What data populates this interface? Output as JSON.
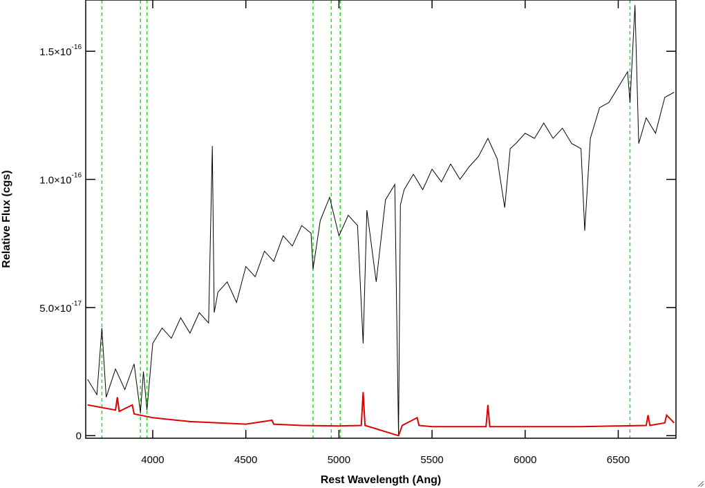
{
  "chart_data": {
    "type": "line",
    "x_label": "Rest Wavelength (Ang)",
    "y_label": "Relative Flux (cgs)",
    "xlim": [
      3640,
      6810
    ],
    "ylim": [
      -1e-18,
      1.7e-16
    ],
    "xticks": [
      4000,
      4500,
      5000,
      5500,
      6000,
      6500
    ],
    "yticks": [
      0,
      {
        "value": 5e-17,
        "label": "5.0×10",
        "exponent": "-17"
      },
      {
        "value": 1e-16,
        "label": "1.0×10",
        "exponent": "-16"
      },
      {
        "value": 1.5e-16,
        "label": "1.5×10",
        "exponent": "-16"
      }
    ],
    "markers": {
      "x": [
        3727,
        3934,
        3969,
        4861,
        4959,
        5007,
        6563
      ],
      "color": "#22dd22"
    },
    "series": [
      {
        "color": "#000000",
        "x": [
          3650,
          3700,
          3727,
          3750,
          3800,
          3850,
          3900,
          3934,
          3950,
          3969,
          4000,
          4050,
          4100,
          4150,
          4200,
          4250,
          4300,
          4320,
          4330,
          4350,
          4400,
          4450,
          4500,
          4550,
          4600,
          4650,
          4700,
          4750,
          4800,
          4850,
          4861,
          4900,
          4950,
          5000,
          5050,
          5100,
          5130,
          5150,
          5200,
          5250,
          5300,
          5320,
          5330,
          5350,
          5400,
          5450,
          5500,
          5550,
          5600,
          5650,
          5700,
          5750,
          5800,
          5850,
          5890,
          5920,
          5950,
          6000,
          6050,
          6100,
          6150,
          6200,
          6250,
          6300,
          6320,
          6350,
          6400,
          6450,
          6500,
          6550,
          6563,
          6590,
          6610,
          6650,
          6700,
          6750,
          6800
        ],
        "values": [
          2.2e-17,
          1.6e-17,
          4.2e-17,
          1.5e-17,
          2.6e-17,
          1.8e-17,
          2.8e-17,
          9e-18,
          2.5e-17,
          1e-17,
          3.6e-17,
          4.2e-17,
          3.8e-17,
          4.6e-17,
          4e-17,
          4.8e-17,
          4.4e-17,
          1.13e-16,
          4.8e-17,
          5.6e-17,
          6e-17,
          5.2e-17,
          6.6e-17,
          6.2e-17,
          7.2e-17,
          6.8e-17,
          7.8e-17,
          7.4e-17,
          8.2e-17,
          7.9e-17,
          6.5e-17,
          8.4e-17,
          9.3e-17,
          7.8e-17,
          8.6e-17,
          8.2e-17,
          3.6e-17,
          8.8e-17,
          6e-17,
          9.2e-17,
          9.8e-17,
          0,
          9e-17,
          9.6e-17,
          1.02e-16,
          9.6e-17,
          1.04e-16,
          9.9e-17,
          1.06e-16,
          1e-16,
          1.05e-16,
          1.09e-16,
          1.16e-16,
          1.08e-16,
          8.9e-17,
          1.12e-16,
          1.14e-16,
          1.18e-16,
          1.16e-16,
          1.22e-16,
          1.16e-16,
          1.2e-16,
          1.14e-16,
          1.12e-16,
          8e-17,
          1.16e-16,
          1.28e-16,
          1.3e-16,
          1.36e-16,
          1.42e-16,
          1.3e-16,
          1.68e-16,
          1.14e-16,
          1.24e-16,
          1.18e-16,
          1.32e-16,
          1.34e-16
        ]
      },
      {
        "color": "#dd0000",
        "x": [
          3650,
          3800,
          3810,
          3820,
          3890,
          3900,
          4000,
          4200,
          4500,
          4640,
          4650,
          4800,
          5000,
          5120,
          5130,
          5140,
          5320,
          5340,
          5420,
          5430,
          5500,
          5790,
          5800,
          5810,
          6000,
          6300,
          6500,
          6650,
          6660,
          6670,
          6750,
          6760,
          6800
        ],
        "values": [
          1.2e-17,
          1e-17,
          1.5e-17,
          9.5e-18,
          1.2e-17,
          8.5e-18,
          7e-18,
          5.5e-18,
          4.5e-18,
          6e-18,
          4.5e-18,
          4e-18,
          3.8e-18,
          4e-18,
          1.7e-17,
          4e-18,
          0,
          4e-18,
          7e-18,
          4e-18,
          3.5e-18,
          3.5e-18,
          1.2e-17,
          3.5e-18,
          3.5e-18,
          3.5e-18,
          3.8e-18,
          4e-18,
          8e-18,
          4e-18,
          5e-18,
          8e-18,
          5e-18
        ]
      }
    ]
  }
}
